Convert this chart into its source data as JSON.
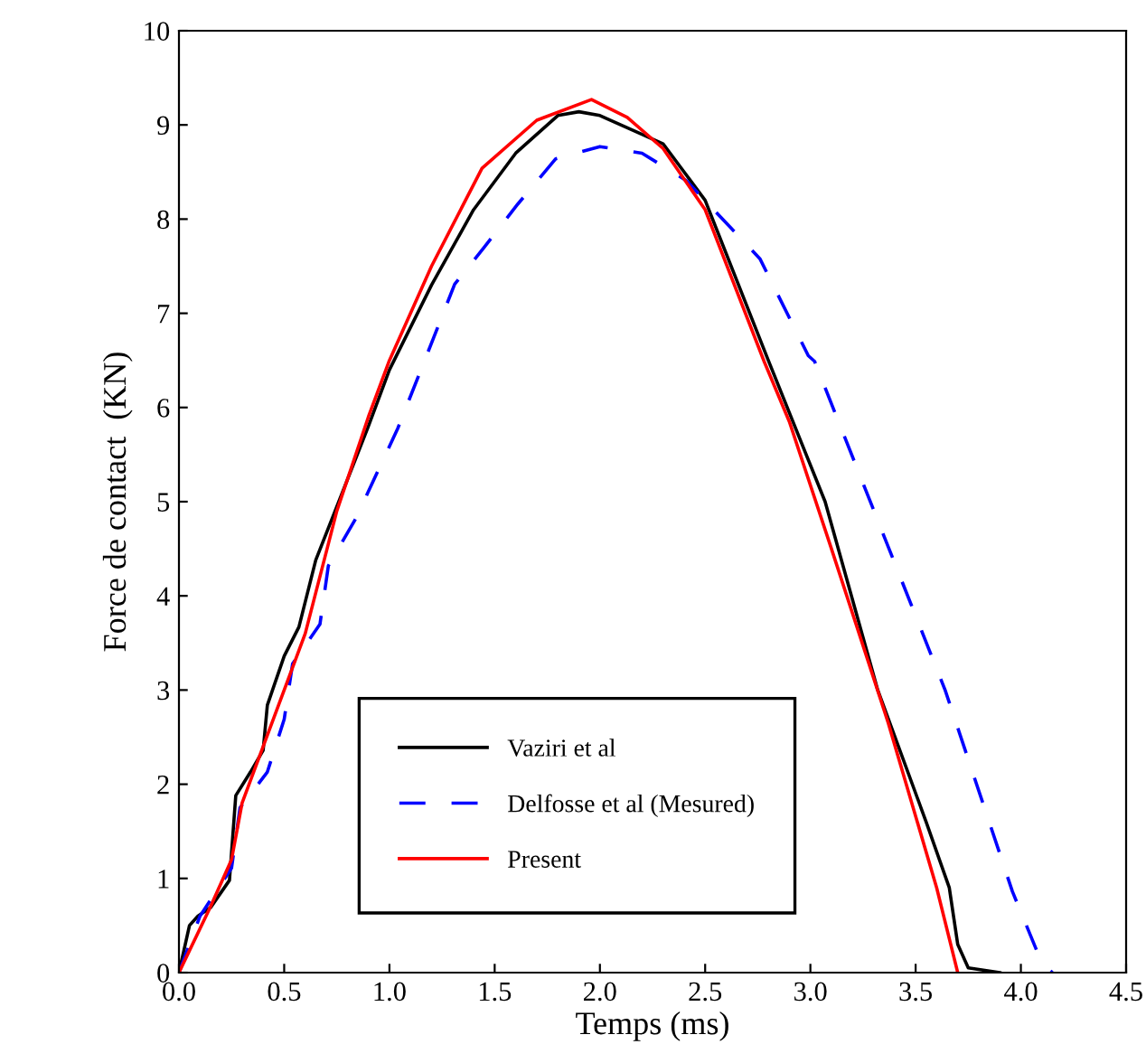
{
  "chart_data": {
    "type": "line",
    "xlabel": "Temps (ms)",
    "ylabel": "Force de contact  (KN)",
    "xlim": [
      0,
      4.5
    ],
    "ylim": [
      0,
      10
    ],
    "xticks": [
      {
        "value": 0,
        "label": "0.0"
      },
      {
        "value": 0.5,
        "label": "0.5"
      },
      {
        "value": 1,
        "label": "1.0"
      },
      {
        "value": 1.5,
        "label": "1.5"
      },
      {
        "value": 2,
        "label": "2.0"
      },
      {
        "value": 2.5,
        "label": "2.5"
      },
      {
        "value": 3,
        "label": "3.0"
      },
      {
        "value": 3.5,
        "label": "3.5"
      },
      {
        "value": 4,
        "label": "4.0"
      },
      {
        "value": 4.5,
        "label": "4.5"
      }
    ],
    "yticks": [
      0,
      1,
      2,
      3,
      4,
      5,
      6,
      7,
      8,
      9,
      10
    ],
    "grid": false,
    "legend": "bottom",
    "marker": "none",
    "series": [
      {
        "name": "Vaziri et al",
        "color": "#000000",
        "line_style": "solid",
        "x": [
          0,
          0.05,
          0.09,
          0.15,
          0.24,
          0.27,
          0.34,
          0.4,
          0.42,
          0.5,
          0.57,
          0.65,
          0.74,
          0.9,
          1.0,
          1.2,
          1.4,
          1.6,
          1.8,
          1.9,
          2.0,
          2.2,
          2.3,
          2.5,
          2.8,
          3.07,
          3.32,
          3.55,
          3.66,
          3.7,
          3.75,
          3.9
        ],
        "values": [
          0,
          0.5,
          0.6,
          0.69,
          0.98,
          1.88,
          2.13,
          2.36,
          2.84,
          3.36,
          3.67,
          4.38,
          4.89,
          5.8,
          6.4,
          7.3,
          8.1,
          8.7,
          9.1,
          9.14,
          9.1,
          8.9,
          8.8,
          8.2,
          6.5,
          5.0,
          3.0,
          1.6,
          0.9,
          0.3,
          0.05,
          0
        ]
      },
      {
        "name": "Delfosse et al (Mesured)",
        "color": "#0000ff",
        "line_style": "dashed",
        "x": [
          0,
          0.1,
          0.25,
          0.29,
          0.42,
          0.5,
          0.54,
          0.67,
          0.71,
          0.84,
          1.04,
          1.21,
          1.31,
          1.45,
          1.61,
          1.79,
          2.0,
          2.2,
          2.41,
          2.76,
          2.99,
          3.02,
          3.64,
          3.96,
          4.1,
          4.15
        ],
        "values": [
          0,
          0.6,
          1.11,
          1.75,
          2.13,
          2.69,
          3.28,
          3.7,
          4.32,
          4.82,
          5.78,
          6.74,
          7.31,
          7.7,
          8.16,
          8.64,
          8.77,
          8.7,
          8.41,
          7.58,
          6.55,
          6.49,
          3.0,
          0.86,
          0.1,
          0
        ]
      },
      {
        "name": "Present",
        "color": "#ff0000",
        "line_style": "solid",
        "x": [
          0,
          0.15,
          0.25,
          0.3,
          0.45,
          0.6,
          0.75,
          0.9,
          1.0,
          1.2,
          1.44,
          1.7,
          1.96,
          2.13,
          2.3,
          2.5,
          2.78,
          2.9,
          3.1,
          3.37,
          3.6,
          3.7
        ],
        "values": [
          0,
          0.7,
          1.2,
          1.8,
          2.7,
          3.6,
          4.9,
          5.9,
          6.5,
          7.5,
          8.54,
          9.05,
          9.27,
          9.08,
          8.75,
          8.1,
          6.49,
          5.85,
          4.5,
          2.65,
          0.9,
          0
        ]
      }
    ]
  }
}
